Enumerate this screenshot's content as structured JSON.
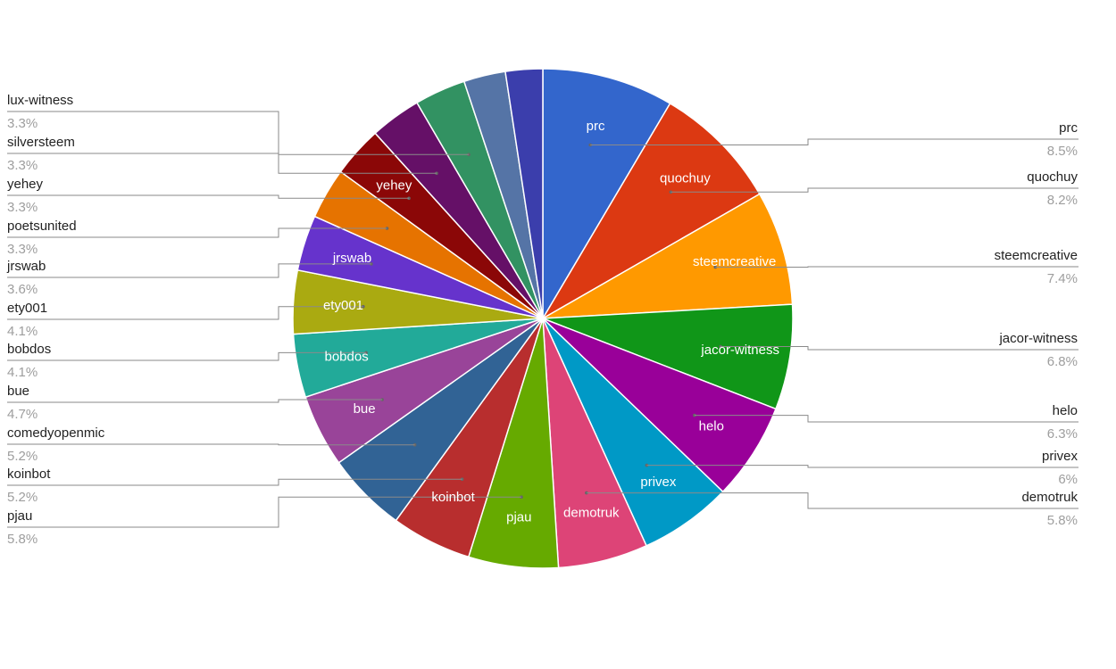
{
  "chart_data": {
    "type": "pie",
    "title": "",
    "slices": [
      {
        "name": "prc",
        "value": 8.5,
        "value_label": "8.5%",
        "color": "#3366cc",
        "inside_label": true
      },
      {
        "name": "quochuy",
        "value": 8.2,
        "value_label": "8.2%",
        "color": "#dc3912",
        "inside_label": true
      },
      {
        "name": "steemcreative",
        "value": 7.4,
        "value_label": "7.4%",
        "color": "#ff9900",
        "inside_label": true
      },
      {
        "name": "jacor-witness",
        "value": 6.8,
        "value_label": "6.8%",
        "color": "#109618",
        "inside_label": true
      },
      {
        "name": "helo",
        "value": 6.3,
        "value_label": "6.3%",
        "color": "#990099",
        "inside_label": true
      },
      {
        "name": "privex",
        "value": 6.0,
        "value_label": "6%",
        "color": "#0099c6",
        "inside_label": true
      },
      {
        "name": "demotruk",
        "value": 5.8,
        "value_label": "5.8%",
        "color": "#dd4477",
        "inside_label": true
      },
      {
        "name": "pjau",
        "value": 5.8,
        "value_label": "5.8%",
        "color": "#66aa00",
        "inside_label": true
      },
      {
        "name": "koinbot",
        "value": 5.2,
        "value_label": "5.2%",
        "color": "#b82e2e",
        "inside_label": true
      },
      {
        "name": "comedyopenmic",
        "value": 5.2,
        "value_label": "5.2%",
        "color": "#316395",
        "inside_label": false
      },
      {
        "name": "bue",
        "value": 4.7,
        "value_label": "4.7%",
        "color": "#994499",
        "inside_label": true
      },
      {
        "name": "bobdos",
        "value": 4.1,
        "value_label": "4.1%",
        "color": "#22aa99",
        "inside_label": true
      },
      {
        "name": "ety001",
        "value": 4.1,
        "value_label": "4.1%",
        "color": "#aaaa11",
        "inside_label": true
      },
      {
        "name": "jrswab",
        "value": 3.6,
        "value_label": "3.6%",
        "color": "#6633cc",
        "inside_label": true
      },
      {
        "name": "poetsunited",
        "value": 3.3,
        "value_label": "3.3%",
        "color": "#e67300",
        "inside_label": false
      },
      {
        "name": "yehey",
        "value": 3.3,
        "value_label": "3.3%",
        "color": "#8b0707",
        "inside_label": true
      },
      {
        "name": "silversteem",
        "value": 3.3,
        "value_label": "3.3%",
        "color": "#651067",
        "inside_label": false
      },
      {
        "name": "lux-witness",
        "value": 3.3,
        "value_label": "3.3%",
        "color": "#329262",
        "inside_label": false
      },
      {
        "name": "",
        "value": 2.7,
        "value_label": "",
        "color": "#5574a6",
        "inside_label": false
      },
      {
        "name": "",
        "value": 2.4,
        "value_label": "",
        "color": "#3b3eac",
        "inside_label": false
      }
    ],
    "legend": "callouts-left-right"
  }
}
